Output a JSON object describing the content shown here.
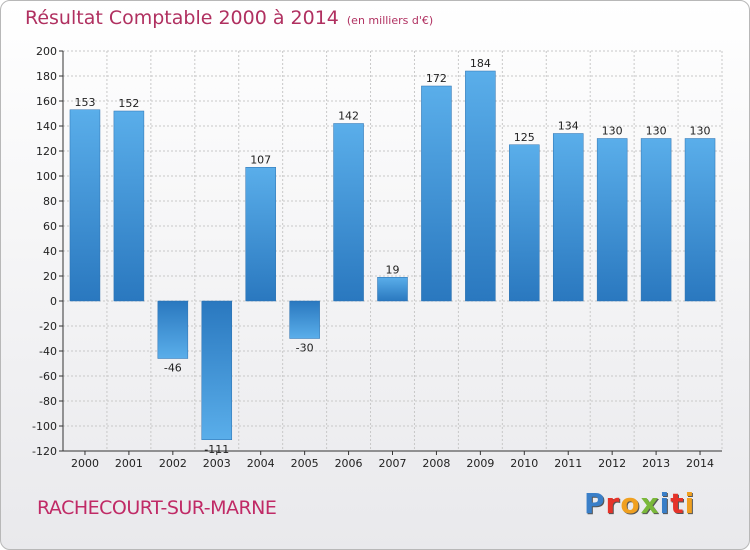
{
  "header": {
    "title": "Résultat Comptable 2000 à 2014",
    "subtitle": "(en milliers d'€)"
  },
  "footer": {
    "commune": "RACHECOURT-SUR-MARNE",
    "logo": "Proxiti"
  },
  "colors": {
    "bar": "#3a8fd3",
    "title": "#b03060"
  },
  "chart_data": {
    "type": "bar",
    "title": "Résultat Comptable 2000 à 2014",
    "subtitle": "(en milliers d'€)",
    "categories": [
      "2000",
      "2001",
      "2002",
      "2003",
      "2004",
      "2005",
      "2006",
      "2007",
      "2008",
      "2009",
      "2010",
      "2011",
      "2012",
      "2013",
      "2014"
    ],
    "values": [
      153,
      152,
      -46,
      -111,
      107,
      -30,
      142,
      19,
      172,
      184,
      125,
      134,
      130,
      130,
      130
    ],
    "ylim": [
      -120,
      200
    ],
    "yticks": [
      200,
      180,
      160,
      140,
      120,
      100,
      80,
      60,
      40,
      20,
      0,
      -20,
      -40,
      -60,
      -80,
      -100,
      -120
    ],
    "grid": true
  }
}
